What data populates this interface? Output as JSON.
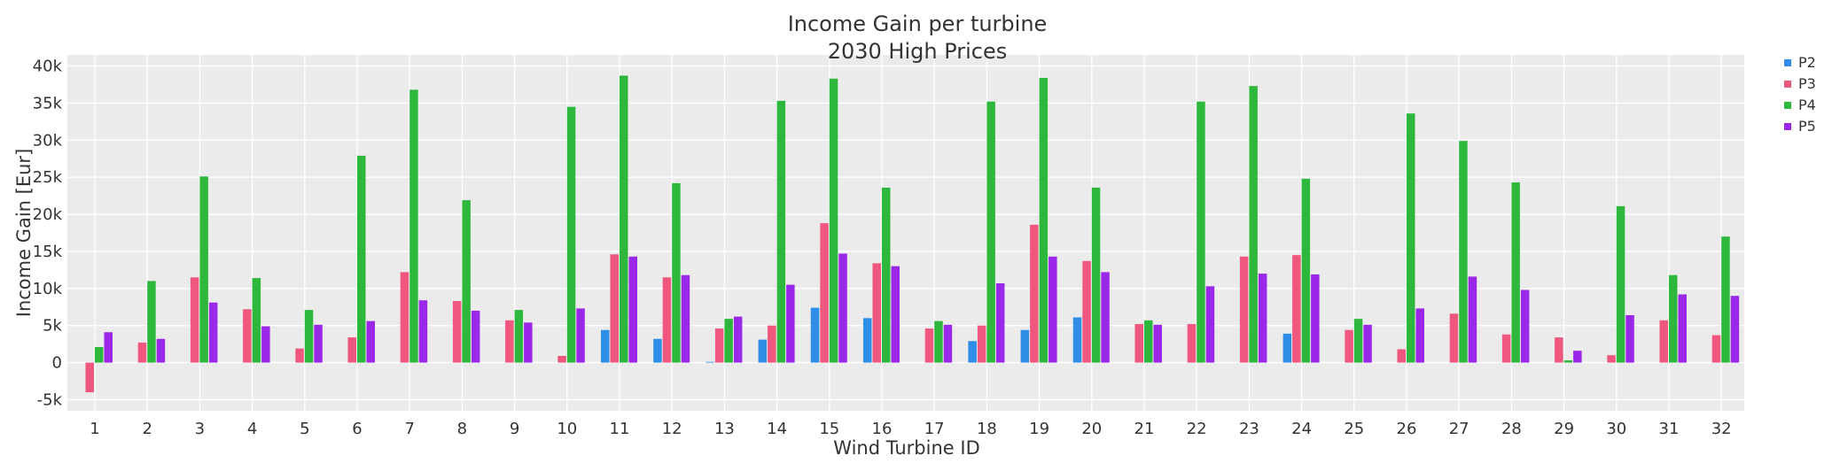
{
  "chart_data": {
    "type": "bar",
    "title": "Income Gain per turbine",
    "subtitle": "2030 High Prices",
    "xlabel": "Wind Turbine ID",
    "ylabel": "Income Gain [Eur]",
    "ylim": [
      -6500,
      41500
    ],
    "yticks": [
      -5000,
      0,
      5000,
      10000,
      15000,
      20000,
      25000,
      30000,
      35000,
      40000
    ],
    "ytick_labels": [
      "-5k",
      "0",
      "5k",
      "10k",
      "15k",
      "20k",
      "25k",
      "30k",
      "35k",
      "40k"
    ],
    "grid": true,
    "legend_position": "top-right",
    "categories": [
      "1",
      "2",
      "3",
      "4",
      "5",
      "6",
      "7",
      "8",
      "9",
      "10",
      "11",
      "12",
      "13",
      "14",
      "15",
      "16",
      "17",
      "18",
      "19",
      "20",
      "21",
      "22",
      "23",
      "24",
      "25",
      "26",
      "27",
      "28",
      "29",
      "30",
      "31",
      "32"
    ],
    "series": [
      {
        "name": "P2",
        "color": "#2e8de6",
        "values": [
          0,
          0,
          0,
          0,
          0,
          0,
          0,
          0,
          0,
          0,
          4400,
          3200,
          100,
          3100,
          7400,
          6000,
          0,
          2900,
          4400,
          6100,
          0,
          0,
          0,
          3900,
          0,
          0,
          0,
          0,
          0,
          0,
          0,
          0
        ]
      },
      {
        "name": "P3",
        "color": "#f0577f",
        "values": [
          -4000,
          2700,
          11500,
          7200,
          1900,
          3400,
          12200,
          8300,
          5700,
          900,
          14600,
          11500,
          4600,
          5000,
          18800,
          13400,
          4600,
          5000,
          18600,
          13700,
          5200,
          5200,
          14300,
          14500,
          4400,
          1800,
          6600,
          3800,
          3400,
          1000,
          5700,
          3700
        ]
      },
      {
        "name": "P4",
        "color": "#2db83d",
        "values": [
          2100,
          11000,
          25100,
          11400,
          7100,
          27900,
          36800,
          21900,
          7100,
          34500,
          38700,
          24200,
          5900,
          35300,
          38300,
          23600,
          5600,
          35200,
          38400,
          23600,
          5700,
          35200,
          37300,
          24800,
          5900,
          33600,
          29900,
          24300,
          300,
          21100,
          11800,
          17000
        ]
      },
      {
        "name": "P5",
        "color": "#9b27e8",
        "values": [
          4100,
          3200,
          8100,
          4900,
          5100,
          5600,
          8400,
          7000,
          5400,
          7300,
          14300,
          11800,
          6200,
          10500,
          14700,
          13000,
          5100,
          10700,
          14300,
          12200,
          5100,
          10300,
          12000,
          11900,
          5100,
          7300,
          11600,
          9800,
          1600,
          6400,
          9200,
          9000
        ]
      }
    ]
  }
}
